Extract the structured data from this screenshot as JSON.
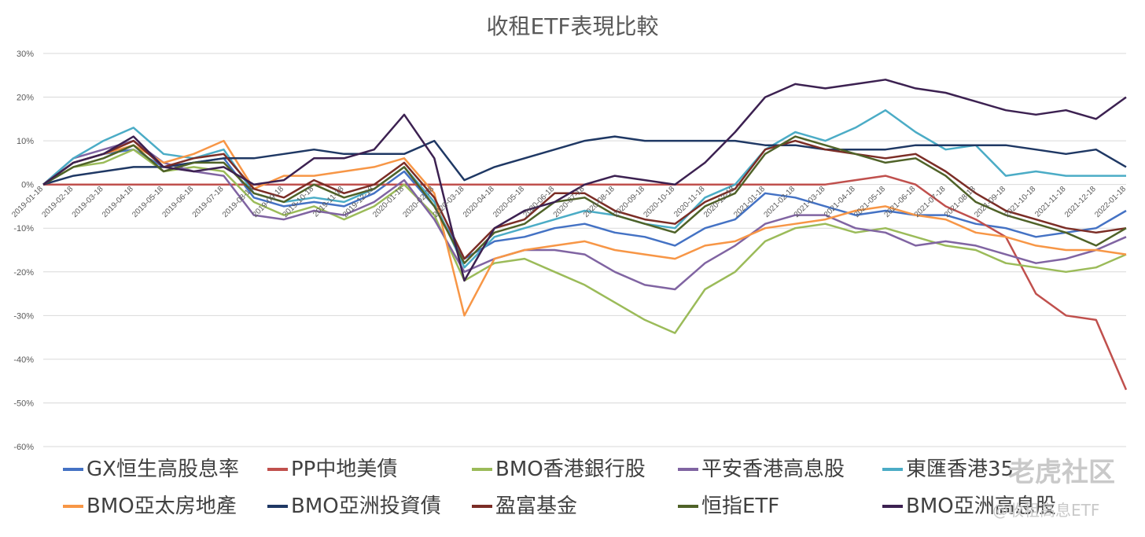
{
  "chart_data": {
    "type": "line",
    "title": "收租ETF表現比較",
    "xlabel": "",
    "ylabel": "",
    "ylim": [
      -0.6,
      0.3
    ],
    "grid": true,
    "legend_position": "bottom",
    "y_ticks": [
      "30%",
      "20%",
      "10%",
      "0%",
      "-10%",
      "-20%",
      "-30%",
      "-40%",
      "-50%",
      "-60%"
    ],
    "y_tick_values": [
      0.3,
      0.2,
      0.1,
      0.0,
      -0.1,
      -0.2,
      -0.3,
      -0.4,
      -0.5,
      -0.6
    ],
    "x_ticks": [
      "2019-01-18",
      "2019-02-18",
      "2019-03-18",
      "2019-04-18",
      "2019-05-18",
      "2019-06-18",
      "2019-07-18",
      "2019-08-18",
      "2019-09-18",
      "2019-10-18",
      "2019-11-18",
      "2019-12-18",
      "2020-01-18",
      "2020-02-18",
      "2020-03-18",
      "2020-04-18",
      "2020-05-18",
      "2020-06-18",
      "2020-07-18",
      "2020-08-18",
      "2020-09-18",
      "2020-10-18",
      "2020-11-18",
      "2020-12-18",
      "2021-01-18",
      "2021-02-18",
      "2021-03-18",
      "2021-04-18",
      "2021-05-18",
      "2021-06-18",
      "2021-07-18",
      "2021-08-18",
      "2021-09-18",
      "2021-10-18",
      "2021-11-18",
      "2021-12-18",
      "2022-01-18"
    ],
    "series": [
      {
        "name": "GX恒生高股息率",
        "color": "#4472c4",
        "values": [
          0.0,
          0.05,
          0.07,
          0.08,
          0.04,
          0.05,
          0.06,
          -0.03,
          -0.05,
          -0.04,
          -0.05,
          -0.02,
          0.03,
          -0.05,
          -0.17,
          -0.13,
          -0.12,
          -0.1,
          -0.09,
          -0.11,
          -0.12,
          -0.14,
          -0.1,
          -0.08,
          -0.02,
          -0.03,
          -0.05,
          -0.07,
          -0.06,
          -0.07,
          -0.07,
          -0.09,
          -0.1,
          -0.12,
          -0.11,
          -0.1,
          -0.06
        ]
      },
      {
        "name": "PP中地美債",
        "color": "#c0504d",
        "values": [
          0.0,
          0.0,
          0.0,
          0.0,
          0.0,
          0.0,
          0.0,
          0.0,
          0.0,
          0.0,
          0.0,
          0.0,
          0.0,
          0.0,
          0.0,
          0.0,
          0.0,
          0.0,
          0.0,
          0.0,
          0.0,
          0.0,
          0.0,
          0.0,
          0.0,
          0.0,
          0.0,
          0.01,
          0.02,
          0.0,
          -0.05,
          -0.08,
          -0.12,
          -0.25,
          -0.3,
          -0.31,
          -0.47
        ]
      },
      {
        "name": "BMO香港銀行股",
        "color": "#9bbb59",
        "values": [
          0.0,
          0.04,
          0.05,
          0.08,
          0.03,
          0.04,
          0.03,
          -0.04,
          -0.07,
          -0.05,
          -0.08,
          -0.05,
          0.0,
          -0.07,
          -0.22,
          -0.18,
          -0.17,
          -0.2,
          -0.23,
          -0.27,
          -0.31,
          -0.34,
          -0.24,
          -0.2,
          -0.13,
          -0.1,
          -0.09,
          -0.11,
          -0.1,
          -0.12,
          -0.14,
          -0.15,
          -0.18,
          -0.19,
          -0.2,
          -0.19,
          -0.16
        ]
      },
      {
        "name": "平安香港高息股",
        "color": "#8064a2",
        "values": [
          0.0,
          0.06,
          0.08,
          0.1,
          0.05,
          0.03,
          0.02,
          -0.07,
          -0.08,
          -0.06,
          -0.07,
          -0.04,
          0.01,
          -0.08,
          -0.2,
          -0.17,
          -0.15,
          -0.15,
          -0.16,
          -0.2,
          -0.23,
          -0.24,
          -0.18,
          -0.14,
          -0.09,
          -0.07,
          -0.07,
          -0.1,
          -0.11,
          -0.14,
          -0.13,
          -0.14,
          -0.16,
          -0.18,
          -0.17,
          -0.15,
          -0.12
        ]
      },
      {
        "name": "東匯香港35",
        "color": "#4bacc6",
        "values": [
          0.0,
          0.06,
          0.1,
          0.13,
          0.07,
          0.06,
          0.08,
          -0.02,
          -0.04,
          -0.03,
          -0.04,
          -0.01,
          0.04,
          -0.04,
          -0.19,
          -0.12,
          -0.1,
          -0.08,
          -0.06,
          -0.07,
          -0.09,
          -0.1,
          -0.03,
          0.0,
          0.08,
          0.12,
          0.1,
          0.13,
          0.17,
          0.12,
          0.08,
          0.09,
          0.02,
          0.03,
          0.02,
          0.02,
          0.02
        ]
      },
      {
        "name": "BMO亞太房地產",
        "color": "#f79646",
        "values": [
          0.0,
          0.05,
          0.07,
          0.09,
          0.05,
          0.07,
          0.1,
          -0.01,
          0.02,
          0.02,
          0.03,
          0.04,
          0.06,
          -0.02,
          -0.3,
          -0.17,
          -0.15,
          -0.14,
          -0.13,
          -0.15,
          -0.16,
          -0.17,
          -0.14,
          -0.13,
          -0.1,
          -0.09,
          -0.08,
          -0.06,
          -0.05,
          -0.07,
          -0.08,
          -0.11,
          -0.12,
          -0.14,
          -0.15,
          -0.15,
          -0.16
        ]
      },
      {
        "name": "BMO亞洲投資債",
        "color": "#1f3864",
        "values": [
          0.0,
          0.02,
          0.03,
          0.04,
          0.04,
          0.05,
          0.06,
          0.06,
          0.07,
          0.08,
          0.07,
          0.07,
          0.07,
          0.1,
          0.01,
          0.04,
          0.06,
          0.08,
          0.1,
          0.11,
          0.1,
          0.1,
          0.1,
          0.1,
          0.09,
          0.09,
          0.08,
          0.08,
          0.08,
          0.09,
          0.09,
          0.09,
          0.09,
          0.08,
          0.07,
          0.08,
          0.04
        ]
      },
      {
        "name": "盈富基金",
        "color": "#7b2d26",
        "values": [
          0.0,
          0.05,
          0.07,
          0.1,
          0.04,
          0.06,
          0.07,
          -0.01,
          -0.03,
          0.01,
          -0.02,
          0.0,
          0.05,
          -0.03,
          -0.17,
          -0.1,
          -0.08,
          -0.02,
          -0.02,
          -0.06,
          -0.08,
          -0.09,
          -0.04,
          -0.01,
          0.08,
          0.1,
          0.08,
          0.07,
          0.06,
          0.07,
          0.03,
          -0.02,
          -0.06,
          -0.08,
          -0.1,
          -0.11,
          -0.1
        ]
      },
      {
        "name": "恒指ETF",
        "color": "#4f6228",
        "values": [
          0.0,
          0.04,
          0.06,
          0.09,
          0.03,
          0.05,
          0.05,
          -0.02,
          -0.04,
          0.0,
          -0.03,
          -0.01,
          0.04,
          -0.05,
          -0.18,
          -0.11,
          -0.09,
          -0.04,
          -0.03,
          -0.07,
          -0.09,
          -0.11,
          -0.05,
          -0.02,
          0.07,
          0.11,
          0.09,
          0.07,
          0.05,
          0.06,
          0.02,
          -0.04,
          -0.07,
          -0.09,
          -0.11,
          -0.14,
          -0.1
        ]
      },
      {
        "name": "BMO亞洲高息股",
        "color": "#3c2151",
        "values": [
          0.0,
          0.05,
          0.07,
          0.11,
          0.04,
          0.03,
          0.04,
          0.0,
          0.01,
          0.06,
          0.06,
          0.08,
          0.16,
          0.06,
          -0.22,
          -0.1,
          -0.06,
          -0.04,
          0.0,
          0.02,
          0.01,
          0.0,
          0.05,
          0.12,
          0.2,
          0.23,
          0.22,
          0.23,
          0.24,
          0.22,
          0.21,
          0.19,
          0.17,
          0.16,
          0.17,
          0.15,
          0.2
        ]
      }
    ]
  },
  "watermark": {
    "main": "老虎社区",
    "sub": "@收租高息ETF"
  }
}
